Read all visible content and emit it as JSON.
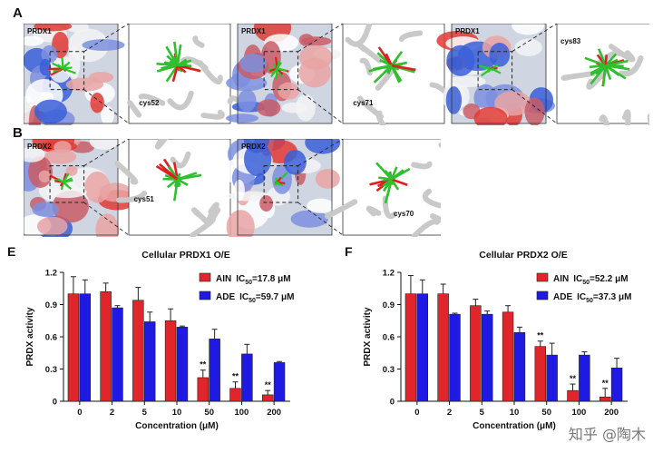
{
  "panels": {
    "A": {
      "letter": "A",
      "items": [
        {
          "protein": "PRDX1",
          "residue": "cys52"
        },
        {
          "protein": "PRDX1",
          "residue": "cys71"
        },
        {
          "protein": "PRDX1",
          "residue": "cys83"
        }
      ]
    },
    "B": {
      "letter": "B",
      "items": [
        {
          "protein": "PRDX2",
          "residue": "cys51"
        },
        {
          "protein": "PRDX2",
          "residue": "cys70"
        }
      ]
    }
  },
  "watermark": "知乎 @陶木",
  "colors": {
    "AIN": "#e0262b",
    "ADE": "#1f1ae3"
  },
  "chart_data": [
    {
      "panel": "E",
      "type": "bar",
      "title": "Cellular PRDX1 O/E",
      "xlabel": "Concentration (μM)",
      "ylabel": "PRDX activity",
      "categories": [
        "0",
        "2",
        "5",
        "10",
        "50",
        "100",
        "200"
      ],
      "ylim": [
        0,
        1.2
      ],
      "yticks": [
        "0",
        "0.3",
        "0.6",
        "0.9",
        "1.2"
      ],
      "legend_position": "top-right",
      "series": [
        {
          "name": "AIN",
          "ic50_label": "IC",
          "ic50_sub": "50",
          "ic50_value": "=17.8 μM",
          "values": [
            1.0,
            1.02,
            0.94,
            0.75,
            0.22,
            0.12,
            0.06
          ],
          "errors": [
            0.16,
            0.08,
            0.12,
            0.11,
            0.07,
            0.06,
            0.04
          ],
          "significance": [
            "",
            "",
            "",
            "",
            "**",
            "**",
            "**"
          ]
        },
        {
          "name": "ADE",
          "ic50_label": "IC",
          "ic50_sub": "50",
          "ic50_value": "=59.7 μM",
          "values": [
            1.0,
            0.87,
            0.74,
            0.69,
            0.58,
            0.44,
            0.36
          ],
          "errors": [
            0.13,
            0.02,
            0.09,
            0.01,
            0.09,
            0.09,
            0.01
          ],
          "significance": [
            "",
            "",
            "",
            "",
            "",
            "",
            ""
          ]
        }
      ]
    },
    {
      "panel": "F",
      "type": "bar",
      "title": "Cellular PRDX2 O/E",
      "xlabel": "Concentration (μM)",
      "ylabel": "PRDX activity",
      "categories": [
        "0",
        "2",
        "5",
        "10",
        "50",
        "100",
        "200"
      ],
      "ylim": [
        0,
        1.2
      ],
      "yticks": [
        "0",
        "0.3",
        "0.6",
        "0.9",
        "1.2"
      ],
      "legend_position": "top-right",
      "series": [
        {
          "name": "AIN",
          "ic50_label": "IC",
          "ic50_sub": "50",
          "ic50_value": "=52.2 μM",
          "values": [
            1.0,
            1.0,
            0.89,
            0.83,
            0.51,
            0.1,
            0.04
          ],
          "errors": [
            0.17,
            0.09,
            0.06,
            0.06,
            0.05,
            0.06,
            0.08
          ],
          "significance": [
            "",
            "",
            "",
            "",
            "**",
            "**",
            "**"
          ]
        },
        {
          "name": "ADE",
          "ic50_label": "IC",
          "ic50_sub": "50",
          "ic50_value": "=37.3 μM",
          "values": [
            1.0,
            0.81,
            0.81,
            0.64,
            0.43,
            0.43,
            0.31
          ],
          "errors": [
            0.13,
            0.01,
            0.03,
            0.05,
            0.11,
            0.03,
            0.09
          ],
          "significance": [
            "",
            "",
            "",
            "",
            "",
            "",
            ""
          ]
        }
      ]
    }
  ]
}
